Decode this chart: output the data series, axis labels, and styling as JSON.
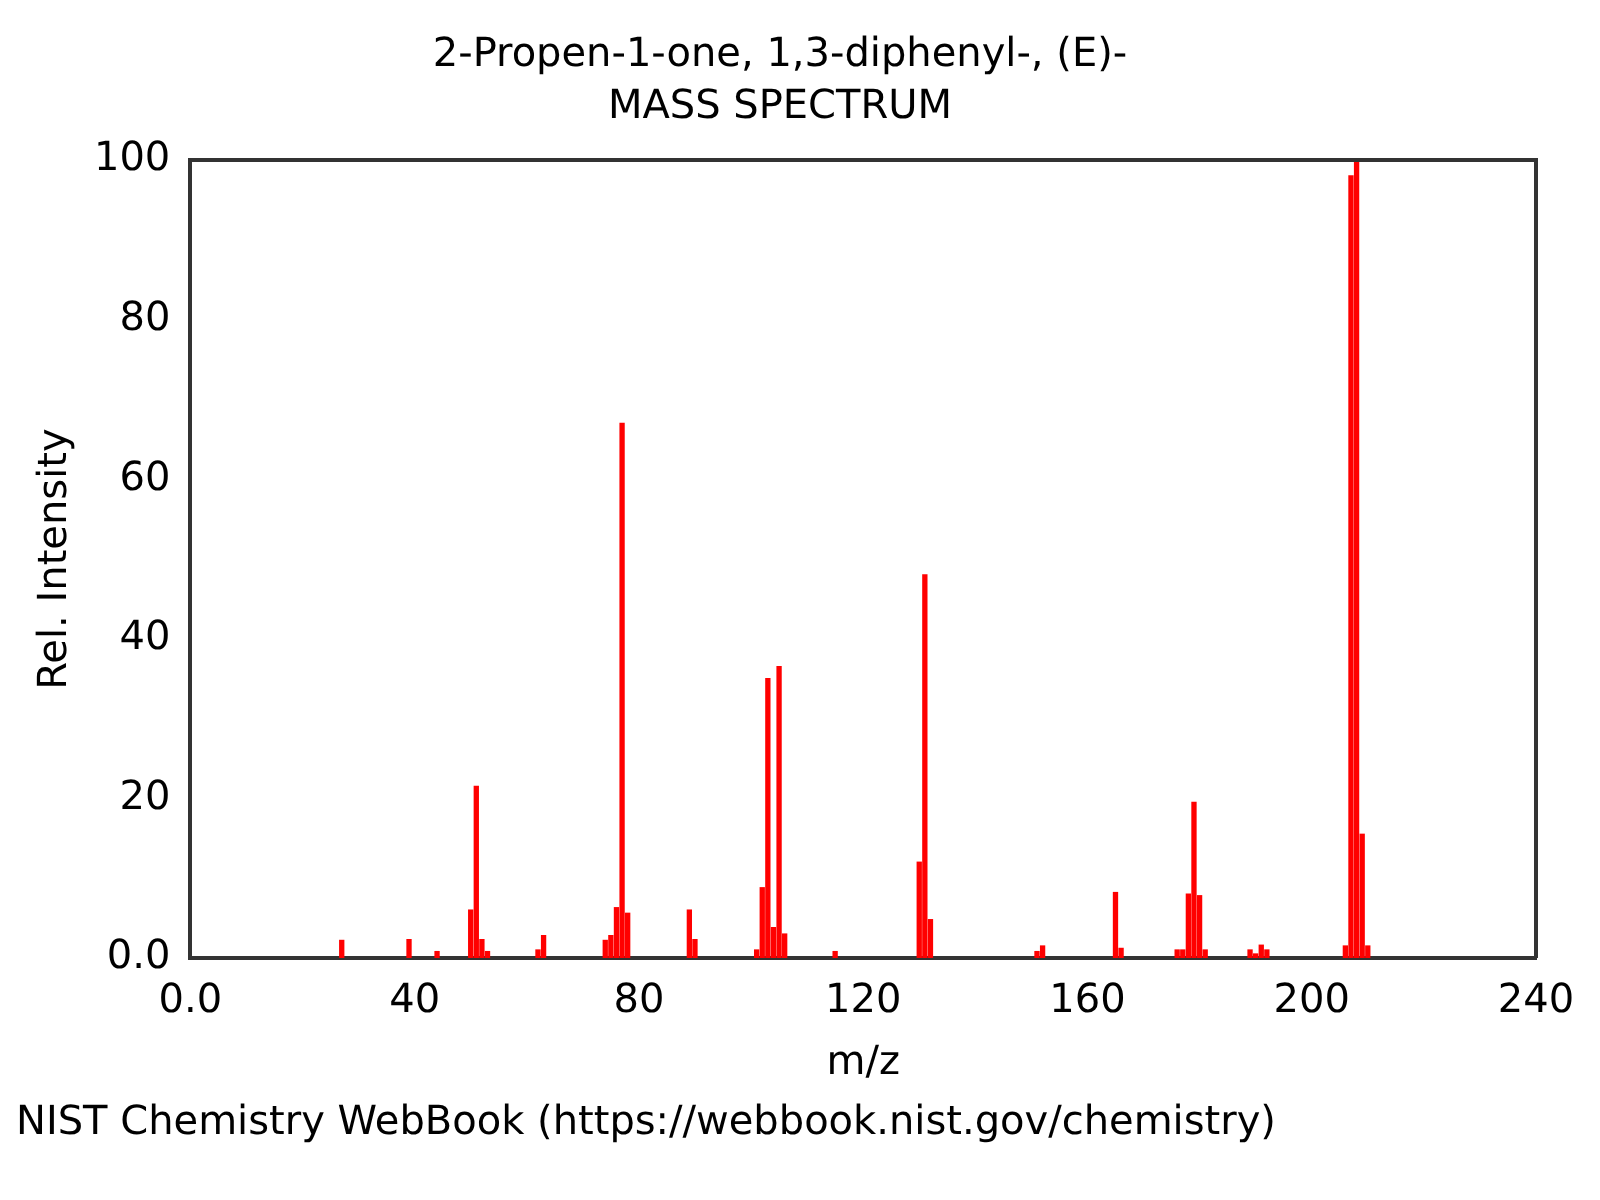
{
  "chart_data": {
    "type": "bar",
    "title": "2-Propen-1-one, 1,3-diphenyl-, (E)-",
    "subtitle": "MASS SPECTRUM",
    "xlabel": "m/z",
    "ylabel": "Rel. Intensity",
    "x": [
      27,
      39,
      44,
      50,
      51,
      52,
      53,
      62,
      63,
      74,
      75,
      76,
      77,
      78,
      89,
      90,
      101,
      102,
      103,
      104,
      105,
      106,
      115,
      130,
      131,
      132,
      151,
      152,
      165,
      166,
      176,
      177,
      178,
      179,
      180,
      181,
      189,
      190,
      191,
      192,
      206,
      207,
      208,
      209,
      210
    ],
    "values": [
      2.2,
      2.3,
      0.8,
      6,
      21.5,
      2.3,
      0.8,
      1,
      2.8,
      2.2,
      2.8,
      6.3,
      67,
      5.6,
      6,
      2.3,
      1,
      8.8,
      35,
      3.8,
      36.5,
      3,
      0.8,
      12,
      48,
      4.8,
      0.8,
      1.5,
      8.2,
      1.2,
      1,
      1,
      8,
      19.5,
      7.8,
      1,
      1,
      0.5,
      1.6,
      1,
      1.5,
      98,
      100,
      15.5,
      1.5
    ],
    "color": "#ff0000",
    "xlim": [
      0,
      240
    ],
    "xticks": [
      {
        "value": 0,
        "label": "0.0"
      },
      40,
      80,
      120,
      160,
      200,
      240
    ],
    "ylim": [
      0,
      100
    ],
    "yticks": [
      {
        "value": 0,
        "label": "0.0"
      },
      20,
      40,
      60,
      80,
      100
    ],
    "grid": false,
    "annotations": [
      "NIST Chemistry WebBook (https://webbook.nist.gov/chemistry)"
    ]
  }
}
